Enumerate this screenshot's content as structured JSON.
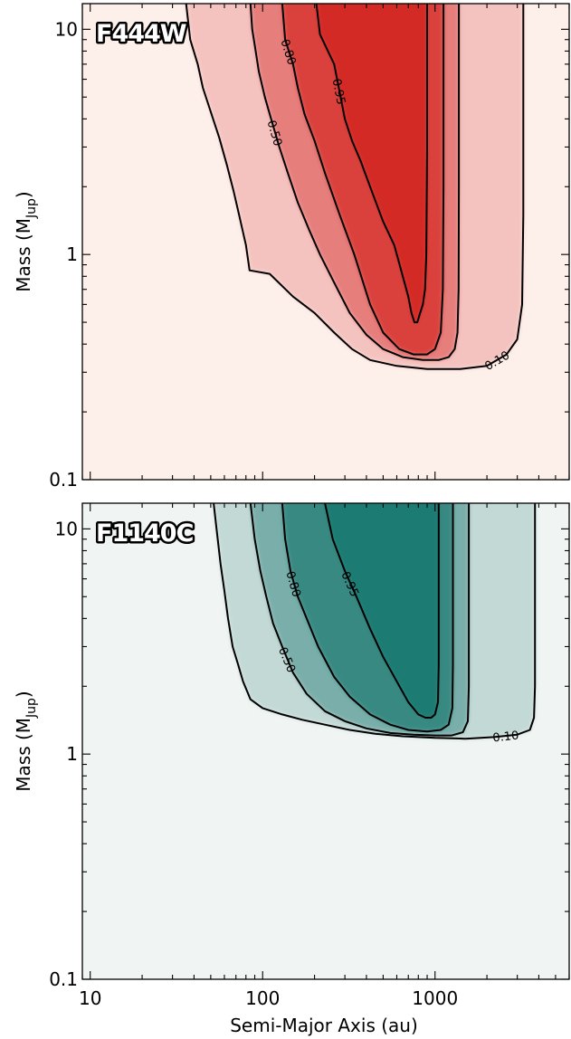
{
  "chart_data": [
    {
      "type": "heatmap",
      "panel": "top",
      "filter_label": "F444W",
      "ylabel_main": "Mass (M",
      "ylabel_sub": "Jup",
      "ylabel_close": ")",
      "xlabel": "",
      "xscale": "log",
      "yscale": "log",
      "xlim": [
        9,
        6000
      ],
      "ylim": [
        0.1,
        13
      ],
      "yticks": [
        {
          "value": 0.1,
          "label": "0.1"
        },
        {
          "value": 1,
          "label": "1"
        },
        {
          "value": 10,
          "label": "10"
        }
      ],
      "xticks": [],
      "colors": {
        "background": "#fdf0eb",
        "fill": "#d42a25"
      },
      "contours": [
        {
          "level": 0.95,
          "label": "0.95",
          "points": [
            [
              205,
              13
            ],
            [
              215,
              9.5
            ],
            [
              260,
              7
            ],
            [
              300,
              4
            ],
            [
              330,
              3.2
            ],
            [
              370,
              2.6
            ],
            [
              420,
              2
            ],
            [
              500,
              1.4
            ],
            [
              580,
              1.1
            ],
            [
              650,
              0.8
            ],
            [
              700,
              0.65
            ],
            [
              730,
              0.55
            ],
            [
              760,
              0.5
            ],
            [
              790,
              0.5
            ],
            [
              820,
              0.55
            ],
            [
              850,
              0.6
            ],
            [
              875,
              0.7
            ],
            [
              890,
              1
            ],
            [
              900,
              3
            ],
            [
              900,
              13
            ]
          ]
        },
        {
          "level": 0.8,
          "label": "0.80",
          "points": [
            [
              130,
              13
            ],
            [
              135,
              9
            ],
            [
              150,
              7
            ],
            [
              160,
              5.5
            ],
            [
              175,
              4.2
            ],
            [
              200,
              3.2
            ],
            [
              230,
              2.3
            ],
            [
              280,
              1.5
            ],
            [
              340,
              1
            ],
            [
              420,
              0.6
            ],
            [
              500,
              0.45
            ],
            [
              620,
              0.38
            ],
            [
              750,
              0.36
            ],
            [
              900,
              0.36
            ],
            [
              1000,
              0.38
            ],
            [
              1080,
              0.45
            ],
            [
              1110,
              0.7
            ],
            [
              1120,
              2
            ],
            [
              1120,
              13
            ]
          ]
        },
        {
          "level": 0.5,
          "label": "0.50",
          "points": [
            [
              85,
              13
            ],
            [
              87,
              10
            ],
            [
              90,
              8.5
            ],
            [
              95,
              6.5
            ],
            [
              103,
              5
            ],
            [
              112,
              4
            ],
            [
              125,
              3
            ],
            [
              140,
              2.3
            ],
            [
              160,
              1.7
            ],
            [
              185,
              1.3
            ],
            [
              215,
              1
            ],
            [
              260,
              0.75
            ],
            [
              320,
              0.55
            ],
            [
              400,
              0.44
            ],
            [
              500,
              0.38
            ],
            [
              650,
              0.35
            ],
            [
              850,
              0.34
            ],
            [
              1050,
              0.34
            ],
            [
              1200,
              0.35
            ],
            [
              1300,
              0.38
            ],
            [
              1350,
              0.45
            ],
            [
              1370,
              0.7
            ],
            [
              1375,
              2
            ],
            [
              1375,
              13
            ]
          ]
        },
        {
          "level": 0.1,
          "label": "0.10",
          "points": [
            [
              36,
              13
            ],
            [
              38,
              9
            ],
            [
              42,
              7
            ],
            [
              45,
              5.5
            ],
            [
              50,
              4.3
            ],
            [
              56,
              3.3
            ],
            [
              62,
              2.5
            ],
            [
              68,
              1.9
            ],
            [
              73,
              1.5
            ],
            [
              80,
              1.1
            ],
            [
              84,
              0.85
            ],
            [
              110,
              0.82
            ],
            [
              150,
              0.65
            ],
            [
              200,
              0.55
            ],
            [
              260,
              0.45
            ],
            [
              330,
              0.38
            ],
            [
              420,
              0.34
            ],
            [
              600,
              0.32
            ],
            [
              900,
              0.31
            ],
            [
              1400,
              0.31
            ],
            [
              2000,
              0.32
            ],
            [
              2600,
              0.36
            ],
            [
              3000,
              0.42
            ],
            [
              3200,
              0.6
            ],
            [
              3250,
              1.5
            ],
            [
              3250,
              13
            ]
          ]
        }
      ]
    },
    {
      "type": "heatmap",
      "panel": "bottom",
      "filter_label": "F1140C",
      "ylabel_main": "Mass (M",
      "ylabel_sub": "Jup",
      "ylabel_close": ")",
      "xlabel": "Semi-Major Axis (au)",
      "xscale": "log",
      "yscale": "log",
      "xlim": [
        9,
        6000
      ],
      "ylim": [
        0.1,
        13
      ],
      "yticks": [
        {
          "value": 0.1,
          "label": "0.1"
        },
        {
          "value": 1,
          "label": "1"
        },
        {
          "value": 10,
          "label": "10"
        }
      ],
      "xticks": [
        {
          "value": 10,
          "label": "10"
        },
        {
          "value": 100,
          "label": "100"
        },
        {
          "value": 1000,
          "label": "1000"
        }
      ],
      "colors": {
        "background": "#f0f4f3",
        "fill": "#1d7b73"
      },
      "contours": [
        {
          "level": 0.95,
          "label": "0.95",
          "points": [
            [
              230,
              13
            ],
            [
              255,
              9
            ],
            [
              300,
              6.5
            ],
            [
              350,
              5
            ],
            [
              420,
              3.6
            ],
            [
              500,
              2.7
            ],
            [
              600,
              2.1
            ],
            [
              700,
              1.7
            ],
            [
              800,
              1.5
            ],
            [
              880,
              1.45
            ],
            [
              950,
              1.45
            ],
            [
              1000,
              1.5
            ],
            [
              1040,
              1.7
            ],
            [
              1050,
              2.5
            ],
            [
              1050,
              13
            ]
          ]
        },
        {
          "level": 0.8,
          "label": "0.80",
          "points": [
            [
              130,
              13
            ],
            [
              135,
              9
            ],
            [
              145,
              6.5
            ],
            [
              160,
              5
            ],
            [
              180,
              4
            ],
            [
              210,
              3
            ],
            [
              260,
              2.2
            ],
            [
              320,
              1.8
            ],
            [
              420,
              1.5
            ],
            [
              550,
              1.35
            ],
            [
              700,
              1.28
            ],
            [
              900,
              1.26
            ],
            [
              1080,
              1.28
            ],
            [
              1200,
              1.35
            ],
            [
              1260,
              1.6
            ],
            [
              1270,
              2.5
            ],
            [
              1270,
              13
            ]
          ]
        },
        {
          "level": 0.5,
          "label": "0.50",
          "points": [
            [
              85,
              13
            ],
            [
              90,
              9
            ],
            [
              97,
              6.5
            ],
            [
              105,
              5
            ],
            [
              115,
              3.8
            ],
            [
              130,
              3
            ],
            [
              150,
              2.3
            ],
            [
              180,
              1.85
            ],
            [
              230,
              1.55
            ],
            [
              300,
              1.4
            ],
            [
              400,
              1.3
            ],
            [
              550,
              1.24
            ],
            [
              750,
              1.22
            ],
            [
              1000,
              1.21
            ],
            [
              1250,
              1.21
            ],
            [
              1450,
              1.25
            ],
            [
              1550,
              1.4
            ],
            [
              1570,
              2
            ],
            [
              1570,
              13
            ]
          ]
        },
        {
          "level": 0.1,
          "label": "0.10",
          "points": [
            [
              52,
              13
            ],
            [
              54,
              10
            ],
            [
              57,
              7
            ],
            [
              60,
              5.3
            ],
            [
              63,
              4
            ],
            [
              67,
              3
            ],
            [
              72,
              2.5
            ],
            [
              77,
              2.1
            ],
            [
              85,
              1.75
            ],
            [
              100,
              1.6
            ],
            [
              130,
              1.5
            ],
            [
              170,
              1.42
            ],
            [
              230,
              1.35
            ],
            [
              320,
              1.28
            ],
            [
              450,
              1.23
            ],
            [
              650,
              1.2
            ],
            [
              1000,
              1.18
            ],
            [
              1500,
              1.17
            ],
            [
              2200,
              1.19
            ],
            [
              3000,
              1.22
            ],
            [
              3550,
              1.28
            ],
            [
              3750,
              1.45
            ],
            [
              3800,
              2
            ],
            [
              3800,
              13
            ]
          ]
        }
      ]
    }
  ]
}
